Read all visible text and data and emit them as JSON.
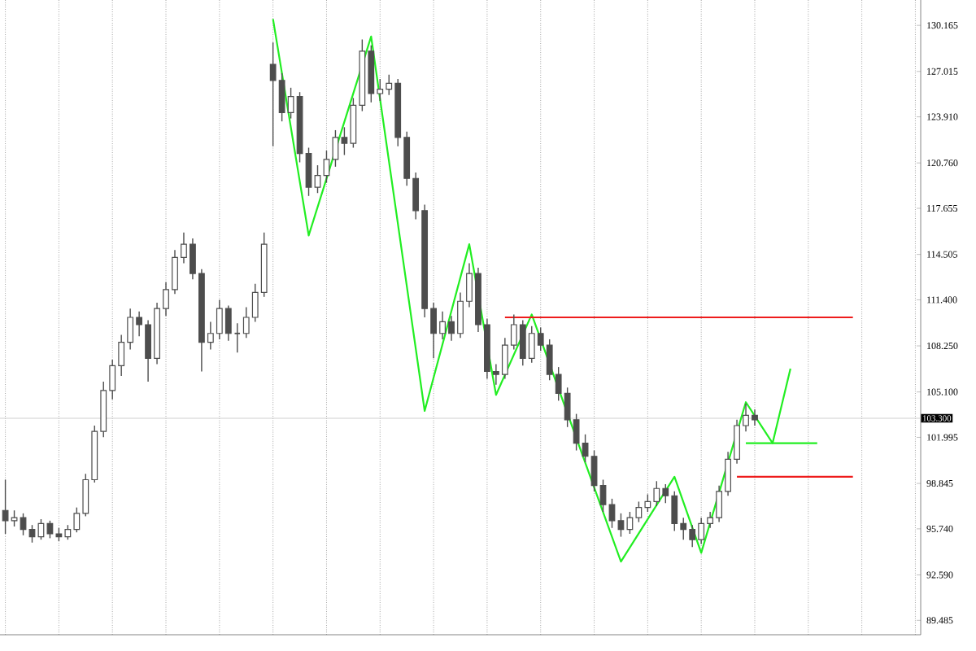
{
  "chart_data": {
    "type": "candlestick",
    "categories": [
      null,
      null,
      null,
      null,
      null,
      null,
      null,
      null,
      null,
      null,
      null,
      null,
      null,
      null,
      null,
      null,
      null,
      null,
      null,
      null,
      null,
      null,
      null,
      null,
      null,
      null,
      null,
      null,
      null,
      null,
      null,
      null,
      null,
      null,
      null,
      null,
      null,
      null,
      null,
      null,
      null,
      null,
      null,
      null,
      null,
      null,
      null,
      null,
      null,
      null,
      null,
      null,
      null,
      null,
      null,
      null,
      null,
      null,
      null,
      null,
      null,
      null,
      null,
      null,
      null,
      null,
      null,
      null,
      null,
      null,
      null,
      null,
      null,
      null,
      null,
      null,
      null,
      null,
      null,
      null,
      null,
      null,
      null,
      null,
      null,
      null,
      null,
      null,
      null,
      null,
      null,
      null,
      null,
      null,
      null,
      null,
      null,
      null,
      null,
      null,
      null,
      null,
      null
    ],
    "ohlc": [
      [
        97.0,
        99.1,
        95.4,
        96.3
      ],
      [
        96.3,
        97.0,
        95.9,
        96.5
      ],
      [
        96.5,
        96.8,
        95.3,
        95.7
      ],
      [
        95.7,
        96.0,
        94.8,
        95.2
      ],
      [
        95.2,
        96.4,
        95.0,
        96.1
      ],
      [
        96.1,
        96.3,
        95.1,
        95.4
      ],
      [
        95.4,
        95.8,
        94.9,
        95.2
      ],
      [
        95.2,
        96.0,
        95.0,
        95.7
      ],
      [
        95.7,
        97.2,
        95.5,
        96.8
      ],
      [
        96.8,
        99.5,
        96.6,
        99.1
      ],
      [
        99.1,
        102.8,
        98.9,
        102.4
      ],
      [
        102.4,
        105.8,
        102.0,
        105.2
      ],
      [
        105.2,
        107.3,
        104.6,
        106.9
      ],
      [
        106.9,
        109.0,
        106.2,
        108.5
      ],
      [
        108.5,
        110.8,
        108.0,
        110.2
      ],
      [
        110.2,
        110.6,
        108.9,
        109.7
      ],
      [
        109.7,
        110.0,
        105.8,
        107.4
      ],
      [
        107.4,
        111.2,
        107.0,
        110.8
      ],
      [
        110.8,
        112.6,
        110.3,
        112.1
      ],
      [
        112.1,
        114.8,
        111.8,
        114.3
      ],
      [
        114.3,
        116.0,
        113.9,
        115.2
      ],
      [
        115.2,
        115.6,
        112.8,
        113.2
      ],
      [
        113.2,
        113.5,
        106.5,
        108.5
      ],
      [
        108.5,
        109.9,
        108.0,
        109.1
      ],
      [
        109.1,
        111.4,
        108.7,
        110.8
      ],
      [
        110.8,
        111.0,
        108.6,
        109.1
      ],
      [
        109.1,
        109.8,
        107.8,
        109.1
      ],
      [
        109.1,
        110.9,
        108.8,
        110.2
      ],
      [
        110.2,
        112.5,
        109.9,
        111.9
      ],
      [
        111.9,
        116.0,
        111.6,
        115.2
      ],
      [
        127.5,
        129.0,
        121.9,
        126.4
      ],
      [
        126.4,
        126.9,
        123.6,
        124.2
      ],
      [
        124.2,
        125.9,
        123.8,
        125.3
      ],
      [
        125.3,
        125.6,
        120.8,
        121.4
      ],
      [
        121.4,
        121.8,
        118.5,
        119.1
      ],
      [
        119.1,
        120.6,
        118.7,
        119.9
      ],
      [
        119.9,
        121.6,
        119.4,
        121.0
      ],
      [
        121.0,
        123.0,
        120.5,
        122.5
      ],
      [
        122.5,
        123.2,
        121.3,
        122.1
      ],
      [
        122.1,
        125.2,
        121.8,
        124.7
      ],
      [
        124.7,
        129.2,
        124.3,
        128.4
      ],
      [
        128.4,
        128.8,
        124.9,
        125.5
      ],
      [
        125.5,
        126.5,
        125.0,
        125.8
      ],
      [
        125.8,
        126.8,
        125.4,
        126.2
      ],
      [
        126.2,
        126.5,
        121.9,
        122.5
      ],
      [
        122.5,
        122.9,
        119.2,
        119.7
      ],
      [
        119.7,
        120.1,
        116.9,
        117.5
      ],
      [
        117.5,
        117.9,
        110.2,
        110.8
      ],
      [
        110.8,
        111.2,
        107.4,
        109.1
      ],
      [
        109.1,
        110.6,
        108.7,
        109.9
      ],
      [
        109.9,
        110.3,
        108.6,
        109.1
      ],
      [
        109.1,
        111.9,
        108.8,
        111.3
      ],
      [
        111.3,
        113.9,
        110.9,
        113.2
      ],
      [
        113.2,
        113.6,
        109.2,
        109.7
      ],
      [
        109.7,
        110.1,
        106.0,
        106.5
      ],
      [
        106.5,
        107.0,
        105.6,
        106.3
      ],
      [
        106.3,
        108.8,
        106.0,
        108.3
      ],
      [
        108.3,
        110.4,
        108.0,
        109.7
      ],
      [
        109.7,
        110.0,
        106.9,
        107.4
      ],
      [
        107.4,
        109.6,
        107.1,
        109.1
      ],
      [
        109.1,
        109.5,
        107.9,
        108.3
      ],
      [
        108.3,
        108.7,
        105.9,
        106.3
      ],
      [
        106.3,
        106.8,
        104.5,
        105.0
      ],
      [
        105.0,
        105.4,
        102.7,
        103.2
      ],
      [
        103.2,
        103.6,
        101.1,
        101.6
      ],
      [
        101.6,
        102.2,
        100.3,
        100.7
      ],
      [
        100.7,
        101.1,
        98.3,
        98.7
      ],
      [
        98.7,
        99.1,
        96.9,
        97.4
      ],
      [
        97.4,
        97.8,
        95.8,
        96.3
      ],
      [
        96.3,
        96.8,
        95.2,
        95.7
      ],
      [
        95.7,
        96.9,
        95.4,
        96.5
      ],
      [
        96.5,
        97.6,
        96.2,
        97.2
      ],
      [
        97.2,
        98.1,
        96.9,
        97.6
      ],
      [
        97.6,
        99.0,
        97.3,
        98.5
      ],
      [
        98.5,
        98.8,
        97.5,
        98.0
      ],
      [
        98.0,
        98.3,
        95.6,
        96.1
      ],
      [
        96.1,
        96.5,
        95.0,
        95.7
      ],
      [
        95.7,
        96.0,
        94.5,
        95.0
      ],
      [
        95.0,
        96.5,
        94.7,
        96.1
      ],
      [
        96.1,
        96.9,
        95.8,
        96.5
      ],
      [
        96.5,
        98.7,
        96.2,
        98.3
      ],
      [
        98.3,
        101.0,
        98.0,
        100.5
      ],
      [
        100.5,
        103.2,
        100.2,
        102.8
      ],
      [
        102.8,
        104.3,
        102.4,
        103.5
      ],
      [
        103.5,
        103.9,
        102.8,
        103.2
      ],
      null,
      null,
      null,
      null,
      null,
      null,
      null,
      null,
      null,
      null,
      null,
      null,
      null,
      null,
      null,
      null,
      null,
      null
    ],
    "color": "#4d4d4d",
    "series": [
      {
        "type": "line",
        "color": "#22ee22",
        "values": [
          null,
          null,
          null,
          null,
          null,
          null,
          null,
          null,
          null,
          null,
          null,
          null,
          null,
          null,
          null,
          null,
          null,
          null,
          null,
          null,
          null,
          null,
          null,
          null,
          null,
          null,
          null,
          null,
          null,
          null,
          130.6,
          null,
          null,
          null,
          115.8,
          null,
          null,
          null,
          null,
          null,
          null,
          129.4,
          null,
          null,
          null,
          null,
          null,
          103.8,
          null,
          null,
          null,
          null,
          115.2,
          null,
          null,
          104.9,
          null,
          null,
          null,
          110.4,
          null,
          null,
          null,
          null,
          null,
          null,
          null,
          null,
          null,
          93.5,
          null,
          null,
          null,
          null,
          null,
          99.3,
          null,
          null,
          94.1,
          null,
          null,
          null,
          null,
          104.4,
          null,
          null,
          101.6,
          null,
          106.7,
          null,
          null,
          null,
          null,
          null,
          null,
          null,
          null,
          null,
          null,
          null,
          null,
          null,
          null
        ]
      },
      {
        "type": "line",
        "color": "#22ee22",
        "values": [
          null,
          null,
          null,
          null,
          null,
          null,
          null,
          null,
          null,
          null,
          null,
          null,
          null,
          null,
          null,
          null,
          null,
          null,
          null,
          null,
          null,
          null,
          null,
          null,
          null,
          null,
          null,
          null,
          null,
          null,
          null,
          null,
          null,
          null,
          null,
          null,
          null,
          null,
          null,
          null,
          null,
          null,
          null,
          null,
          null,
          null,
          null,
          null,
          null,
          null,
          null,
          null,
          null,
          null,
          null,
          null,
          null,
          null,
          null,
          null,
          null,
          null,
          null,
          null,
          null,
          null,
          null,
          null,
          null,
          null,
          null,
          null,
          null,
          null,
          null,
          null,
          null,
          null,
          null,
          null,
          null,
          null,
          null,
          101.6,
          101.6,
          101.6,
          101.6,
          101.6,
          101.6,
          101.6,
          101.6,
          101.6,
          null,
          null,
          null,
          null,
          null,
          null,
          null,
          null,
          null,
          null,
          null
        ]
      },
      {
        "type": "line",
        "color": "#ee1c1c",
        "values": [
          null,
          null,
          null,
          null,
          null,
          null,
          null,
          null,
          null,
          null,
          null,
          null,
          null,
          null,
          null,
          null,
          null,
          null,
          null,
          null,
          null,
          null,
          null,
          null,
          null,
          null,
          null,
          null,
          null,
          null,
          null,
          null,
          null,
          null,
          null,
          null,
          null,
          null,
          null,
          null,
          null,
          null,
          null,
          null,
          null,
          null,
          null,
          null,
          null,
          null,
          null,
          null,
          null,
          null,
          null,
          null,
          110.2,
          110.2,
          110.2,
          110.2,
          110.2,
          110.2,
          110.2,
          110.2,
          110.2,
          110.2,
          110.2,
          110.2,
          110.2,
          110.2,
          110.2,
          110.2,
          110.2,
          110.2,
          110.2,
          110.2,
          110.2,
          110.2,
          110.2,
          110.2,
          110.2,
          110.2,
          110.2,
          110.2,
          110.2,
          110.2,
          110.2,
          110.2,
          110.2,
          110.2,
          110.2,
          110.2,
          110.2,
          110.2,
          110.2,
          110.2,
          null,
          null,
          null,
          null,
          null,
          null,
          null
        ]
      },
      {
        "type": "line",
        "color": "#ee1c1c",
        "values": [
          null,
          null,
          null,
          null,
          null,
          null,
          null,
          null,
          null,
          null,
          null,
          null,
          null,
          null,
          null,
          null,
          null,
          null,
          null,
          null,
          null,
          null,
          null,
          null,
          null,
          null,
          null,
          null,
          null,
          null,
          null,
          null,
          null,
          null,
          null,
          null,
          null,
          null,
          null,
          null,
          null,
          null,
          null,
          null,
          null,
          null,
          null,
          null,
          null,
          null,
          null,
          null,
          null,
          null,
          null,
          null,
          null,
          null,
          null,
          null,
          null,
          null,
          null,
          null,
          null,
          null,
          null,
          null,
          null,
          null,
          null,
          null,
          null,
          null,
          null,
          null,
          null,
          null,
          null,
          null,
          null,
          null,
          99.3,
          99.3,
          99.3,
          99.3,
          99.3,
          99.3,
          99.3,
          99.3,
          99.3,
          99.3,
          99.3,
          99.3,
          99.3,
          99.3,
          null,
          null,
          null,
          null,
          null,
          null,
          null
        ]
      }
    ],
    "ref_lines": [
      {
        "axis": "y",
        "value": 103.3,
        "label": "103.300",
        "color": "#d0d0d0"
      }
    ],
    "ylim": [
      88.5,
      131.9
    ],
    "yticks": [
      {
        "value": 130.165,
        "label": "130.165"
      },
      {
        "value": 127.015,
        "label": "127.015"
      },
      {
        "value": 123.91,
        "label": "123.910"
      },
      {
        "value": 120.76,
        "label": "120.760"
      },
      {
        "value": 117.655,
        "label": "117.655"
      },
      {
        "value": 114.505,
        "label": "114.505"
      },
      {
        "value": 111.4,
        "label": "111.400"
      },
      {
        "value": 108.25,
        "label": "108.250"
      },
      {
        "value": 105.1,
        "label": "105.100"
      },
      {
        "value": 101.995,
        "label": "101.995"
      },
      {
        "value": 98.845,
        "label": "98.845"
      },
      {
        "value": 95.74,
        "label": "95.740"
      },
      {
        "value": 92.59,
        "label": "92.590"
      },
      {
        "value": 89.485,
        "label": "89.485"
      }
    ],
    "grid": "x",
    "tick_labels": "y"
  }
}
